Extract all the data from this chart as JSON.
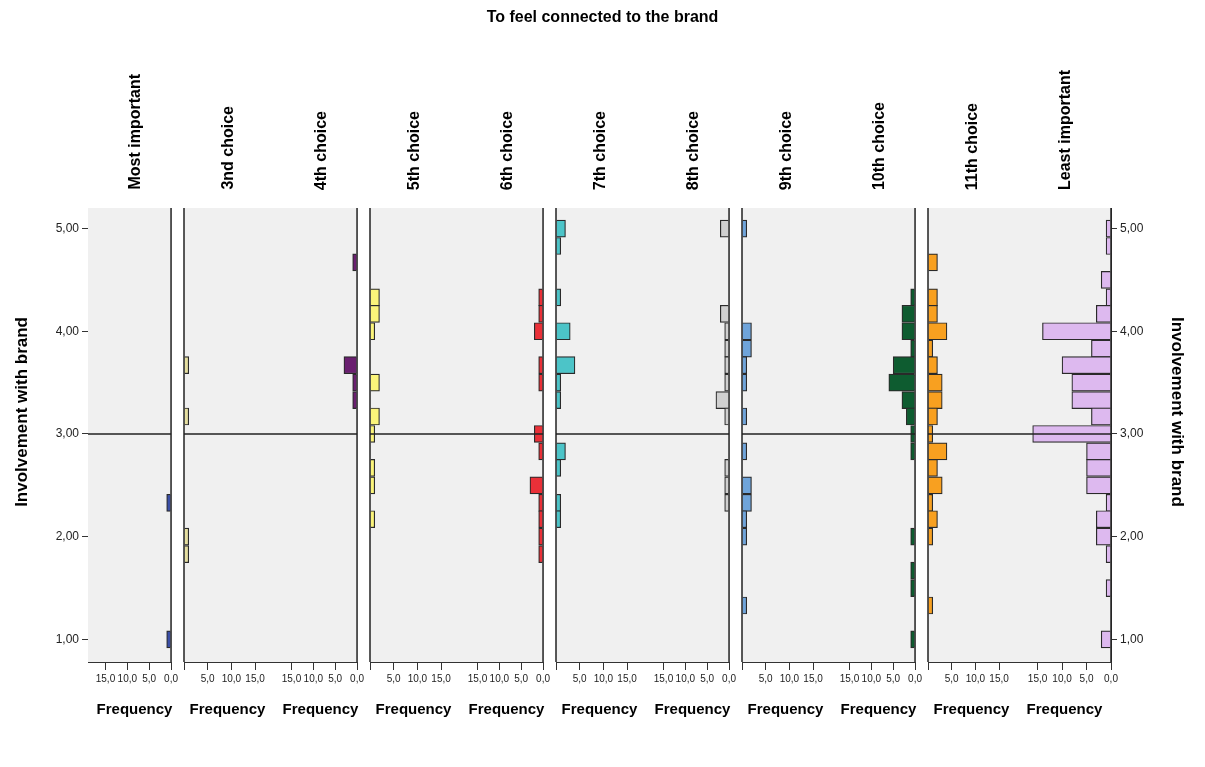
{
  "chart_data": [
    {
      "type": "bar",
      "orientation": "horizontal",
      "title": "Most important",
      "xlabel": "Frequency",
      "ylabel": "Involvement with brand",
      "annotations": [
        "To feel connected to the brand"
      ],
      "color": "#3b4fa6",
      "x": [
        2.33,
        1
      ],
      "values": [
        1,
        1
      ],
      "xlim": [
        19,
        0
      ],
      "xticks": [
        {
          "value": 15,
          "label": "15,0"
        },
        {
          "value": 10,
          "label": "10,0"
        },
        {
          "value": 5,
          "label": "5,0"
        },
        {
          "value": 0,
          "label": "0,0"
        }
      ],
      "ylim": [
        0.78,
        5.2
      ],
      "yticks": [
        {
          "value": 1,
          "label": "1,00"
        },
        {
          "value": 2,
          "label": "2,00"
        },
        {
          "value": 3,
          "label": "3,00"
        },
        {
          "value": 4,
          "label": "4,00"
        },
        {
          "value": 5,
          "label": "5,00"
        }
      ],
      "ref_lines": [
        {
          "axis": "y",
          "value": 3
        }
      ]
    },
    {
      "type": "bar",
      "orientation": "horizontal",
      "title": "3nd choice",
      "xlabel": "Frequency",
      "color": "#e6dfa0",
      "x": [
        3.67,
        3.17,
        2,
        1.83
      ],
      "values": [
        1,
        1,
        1,
        1
      ],
      "xlim": [
        0,
        19
      ],
      "xticks": [
        {
          "value": 0,
          "label": null
        },
        {
          "value": 5,
          "label": "5,0"
        },
        {
          "value": 10,
          "label": "10,0"
        },
        {
          "value": 15,
          "label": "15,0"
        }
      ],
      "ylim": [
        0.78,
        5.2
      ],
      "tick_labels": "x",
      "ref_lines": [
        {
          "axis": "y",
          "value": 3
        }
      ]
    },
    {
      "type": "bar",
      "orientation": "horizontal",
      "title": "4th choice",
      "xlabel": "Frequency",
      "color": "#6a1f70",
      "x": [
        4.67,
        3.67,
        3.5,
        3.33
      ],
      "values": [
        1,
        3,
        1,
        1
      ],
      "xlim": [
        19,
        0
      ],
      "xticks": [
        {
          "value": 15,
          "label": "15,0"
        },
        {
          "value": 10,
          "label": "10,0"
        },
        {
          "value": 5,
          "label": "5,0"
        },
        {
          "value": 0,
          "label": "0,0"
        }
      ],
      "ylim": [
        0.78,
        5.2
      ],
      "tick_labels": "x",
      "ref_lines": [
        {
          "axis": "y",
          "value": 3
        }
      ]
    },
    {
      "type": "bar",
      "orientation": "horizontal",
      "title": "5th choice",
      "xlabel": "Frequency",
      "color": "#fbf47a",
      "x": [
        4.33,
        4.17,
        4,
        3.5,
        3.17,
        3,
        2.67,
        2.5,
        2.17
      ],
      "values": [
        2,
        2,
        1,
        2,
        2,
        1,
        1,
        1,
        1
      ],
      "xlim": [
        0,
        19
      ],
      "xticks": [
        {
          "value": 0,
          "label": null
        },
        {
          "value": 5,
          "label": "5,0"
        },
        {
          "value": 10,
          "label": "10,0"
        },
        {
          "value": 15,
          "label": "15,0"
        }
      ],
      "ylim": [
        0.78,
        5.2
      ],
      "tick_labels": "x",
      "ref_lines": [
        {
          "axis": "y",
          "value": 3
        }
      ]
    },
    {
      "type": "bar",
      "orientation": "horizontal",
      "title": "6th choice",
      "xlabel": "Frequency",
      "color": "#ea3038",
      "x": [
        4.33,
        4.17,
        4,
        3.67,
        3.5,
        3,
        2.83,
        2.5,
        2.33,
        2.17,
        2,
        1.83
      ],
      "values": [
        1,
        1,
        2,
        1,
        1,
        2,
        1,
        3,
        1,
        1,
        1,
        1
      ],
      "xlim": [
        19,
        0
      ],
      "xticks": [
        {
          "value": 15,
          "label": "15,0"
        },
        {
          "value": 10,
          "label": "10,0"
        },
        {
          "value": 5,
          "label": "5,0"
        },
        {
          "value": 0,
          "label": "0,0"
        }
      ],
      "ylim": [
        0.78,
        5.2
      ],
      "tick_labels": "x",
      "ref_lines": [
        {
          "axis": "y",
          "value": 3
        }
      ]
    },
    {
      "type": "bar",
      "orientation": "horizontal",
      "title": "7th choice",
      "xlabel": "Frequency",
      "color": "#4cc4c8",
      "x": [
        5,
        4.83,
        4.33,
        4,
        3.67,
        3.5,
        3.33,
        2.83,
        2.67,
        2.33,
        2.17
      ],
      "values": [
        2,
        1,
        1,
        3,
        4,
        1,
        1,
        2,
        1,
        1,
        1
      ],
      "xlim": [
        0,
        19
      ],
      "xticks": [
        {
          "value": 0,
          "label": null
        },
        {
          "value": 5,
          "label": "5,0"
        },
        {
          "value": 10,
          "label": "10,0"
        },
        {
          "value": 15,
          "label": "15,0"
        }
      ],
      "ylim": [
        0.78,
        5.2
      ],
      "tick_labels": "x",
      "ref_lines": [
        {
          "axis": "y",
          "value": 3
        }
      ]
    },
    {
      "type": "bar",
      "orientation": "horizontal",
      "title": "8th choice",
      "xlabel": "Frequency",
      "color": "#d0d0d0",
      "x": [
        5,
        4.17,
        4,
        3.83,
        3.67,
        3.5,
        3.33,
        3.17,
        2.67,
        2.5,
        2.33
      ],
      "values": [
        2,
        2,
        1,
        1,
        1,
        1,
        3,
        1,
        1,
        1,
        1
      ],
      "xlim": [
        19,
        0
      ],
      "xticks": [
        {
          "value": 15,
          "label": "15,0"
        },
        {
          "value": 10,
          "label": "10,0"
        },
        {
          "value": 5,
          "label": "5,0"
        },
        {
          "value": 0,
          "label": "0,0"
        }
      ],
      "ylim": [
        0.78,
        5.2
      ],
      "tick_labels": "x",
      "ref_lines": [
        {
          "axis": "y",
          "value": 3
        }
      ]
    },
    {
      "type": "bar",
      "orientation": "horizontal",
      "title": "9th choice",
      "xlabel": "Frequency",
      "color": "#6fa4da",
      "x": [
        5,
        4,
        3.83,
        3.67,
        3.5,
        3.17,
        2.83,
        2.5,
        2.33,
        2.17,
        2,
        1.33
      ],
      "values": [
        1,
        2,
        2,
        1,
        1,
        1,
        1,
        2,
        2,
        1,
        1,
        1
      ],
      "xlim": [
        0,
        19
      ],
      "xticks": [
        {
          "value": 0,
          "label": null
        },
        {
          "value": 5,
          "label": "5,0"
        },
        {
          "value": 10,
          "label": "10,0"
        },
        {
          "value": 15,
          "label": "15,0"
        }
      ],
      "ylim": [
        0.78,
        5.2
      ],
      "tick_labels": "x",
      "ref_lines": [
        {
          "axis": "y",
          "value": 3
        }
      ]
    },
    {
      "type": "bar",
      "orientation": "horizontal",
      "title": "10th choice",
      "xlabel": "Frequency",
      "color": "#0e5c30",
      "x": [
        4.33,
        4.17,
        4,
        3.83,
        3.67,
        3.5,
        3.33,
        3.17,
        3,
        2.83,
        2,
        1.67,
        1.5,
        1
      ],
      "values": [
        1,
        3,
        3,
        1,
        5,
        6,
        3,
        2,
        1,
        1,
        1,
        1,
        1,
        1
      ],
      "xlim": [
        19,
        0
      ],
      "xticks": [
        {
          "value": 15,
          "label": "15,0"
        },
        {
          "value": 10,
          "label": "10,0"
        },
        {
          "value": 5,
          "label": "5,0"
        },
        {
          "value": 0,
          "label": "0,0"
        }
      ],
      "ylim": [
        0.78,
        5.2
      ],
      "tick_labels": "x",
      "ref_lines": [
        {
          "axis": "y",
          "value": 3
        }
      ]
    },
    {
      "type": "bar",
      "orientation": "horizontal",
      "title": "11th choice",
      "xlabel": "Frequency",
      "color": "#f8a020",
      "x": [
        4.67,
        4.33,
        4.17,
        4,
        3.83,
        3.67,
        3.5,
        3.33,
        3.17,
        3,
        2.83,
        2.67,
        2.5,
        2.33,
        2.17,
        2,
        1.33
      ],
      "values": [
        2,
        2,
        2,
        4,
        1,
        2,
        3,
        3,
        2,
        1,
        4,
        2,
        3,
        1,
        2,
        1,
        1
      ],
      "xlim": [
        0,
        19
      ],
      "xticks": [
        {
          "value": 0,
          "label": null
        },
        {
          "value": 5,
          "label": "5,0"
        },
        {
          "value": 10,
          "label": "10,0"
        },
        {
          "value": 15,
          "label": "15,0"
        }
      ],
      "ylim": [
        0.78,
        5.2
      ],
      "tick_labels": "x",
      "ref_lines": [
        {
          "axis": "y",
          "value": 3
        }
      ]
    },
    {
      "type": "bar",
      "orientation": "horizontal",
      "title": "Least important",
      "xlabel": "Frequency",
      "y2label": "Involvement with brand",
      "color": "#ddb9ef",
      "x": [
        5,
        4.83,
        4.5,
        4.33,
        4.17,
        4,
        3.83,
        3.67,
        3.5,
        3.33,
        3.17,
        3,
        2.83,
        2.67,
        2.5,
        2.33,
        2.17,
        2,
        1.83,
        1.5,
        1
      ],
      "values": [
        1,
        1,
        2,
        1,
        3,
        14,
        4,
        10,
        8,
        8,
        4,
        16,
        5,
        5,
        5,
        1,
        3,
        3,
        1,
        1,
        2
      ],
      "xlim": [
        19,
        0
      ],
      "xticks": [
        {
          "value": 15,
          "label": "15,0"
        },
        {
          "value": 10,
          "label": "10,0"
        },
        {
          "value": 5,
          "label": "5,0"
        },
        {
          "value": 0,
          "label": "0,0"
        }
      ],
      "ylim": [
        0.78,
        5.2
      ],
      "yticks": [
        {
          "value": 1,
          "label": "1,00"
        },
        {
          "value": 2,
          "label": "2,00"
        },
        {
          "value": 3,
          "label": "3,00"
        },
        {
          "value": 4,
          "label": "4,00"
        },
        {
          "value": 5,
          "label": "5,00"
        }
      ],
      "ref_lines": [
        {
          "axis": "y",
          "value": 3
        }
      ]
    }
  ]
}
